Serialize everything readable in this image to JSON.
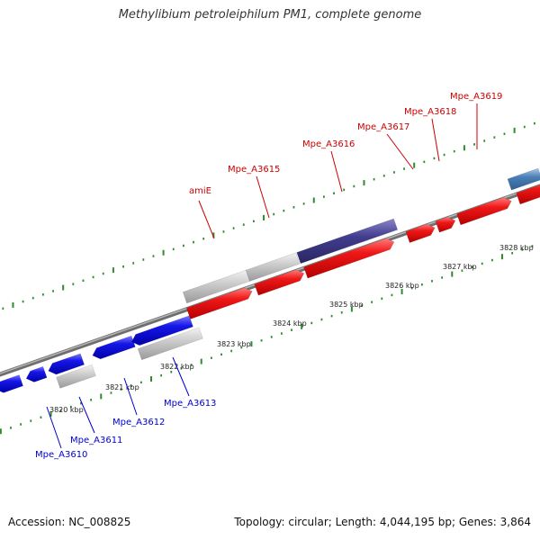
{
  "title": "Methylibium petroleiphilum PM1, complete genome",
  "footer": {
    "accession": "Accession: NC_008825",
    "summary": "Topology: circular; Length: 4,044,195 bp; Genes: 3,864"
  },
  "colors": {
    "forward_gene": "#e81010",
    "reverse_gene": "#1515e6",
    "other_gene": "#c4c4c4",
    "highlight_gene": "#3f3a8c",
    "partial_gene": "#4a7fb5",
    "backbone": "#8a8a8a",
    "tick_mark": "#2e8b2e",
    "forward_label": "#cc0000",
    "reverse_label": "#0000cc"
  },
  "scale_ticks": [
    "3820 kbp",
    "3821 kbp",
    "3822 kbp",
    "3823 kbp",
    "3824 kbp",
    "3825 kbp",
    "3826 kbp",
    "3827 kbp",
    "3828 kbp"
  ],
  "forward_labels": [
    "amiE",
    "Mpe_A3615",
    "Mpe_A3616",
    "Mpe_A3617",
    "Mpe_A3618",
    "Mpe_A3619"
  ],
  "reverse_labels": [
    "Mpe_A3610",
    "Mpe_A3611",
    "Mpe_A3612",
    "Mpe_A3613"
  ]
}
